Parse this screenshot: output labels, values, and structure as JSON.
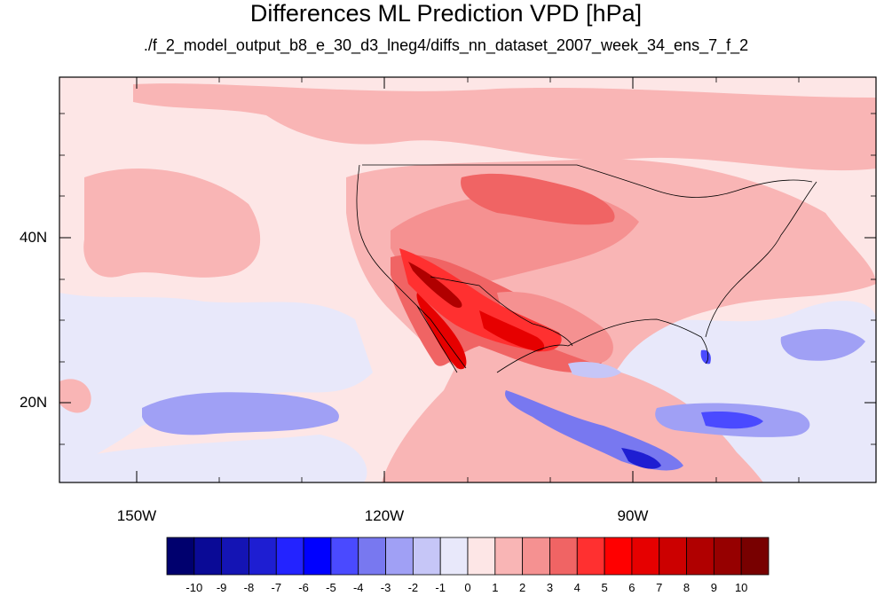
{
  "title": "Differences ML Prediction VPD [hPa]",
  "subtitle": "./f_2_model_output_b8_e_30_d3_lneg4/diffs_nn_dataset_2007_week_34_ens_7_f_2",
  "lat_labels": [
    "40N",
    "20N"
  ],
  "lon_labels": [
    "150W",
    "120W",
    "90W"
  ],
  "colorbar": {
    "labels": [
      "-10",
      "-9",
      "-8",
      "-7",
      "-6",
      "-5",
      "-4",
      "-3",
      "-2",
      "-1",
      "0",
      "1",
      "2",
      "3",
      "4",
      "5",
      "6",
      "7",
      "8",
      "9",
      "10"
    ],
    "colors": [
      "#00006e",
      "#0a0a96",
      "#1414b4",
      "#1e1ed2",
      "#2323ff",
      "#0000ff",
      "#4a4aff",
      "#7878f0",
      "#a0a0f5",
      "#c6c6f7",
      "#e8e8fa",
      "#fde6e6",
      "#f9b5b5",
      "#f59191",
      "#f06464",
      "#ff3030",
      "#ff0000",
      "#e60000",
      "#cc0000",
      "#b00000",
      "#960000",
      "#780000"
    ]
  },
  "map": {
    "projection": "cylindrical-equidistant",
    "lon_range": [
      -159.5,
      -60.5
    ],
    "lat_range": [
      10.5,
      59.5
    ],
    "lat_ticks": [
      40,
      20
    ],
    "lon_ticks": [
      -150,
      -120,
      -90
    ],
    "field": "VPD difference",
    "units": "hPa"
  }
}
